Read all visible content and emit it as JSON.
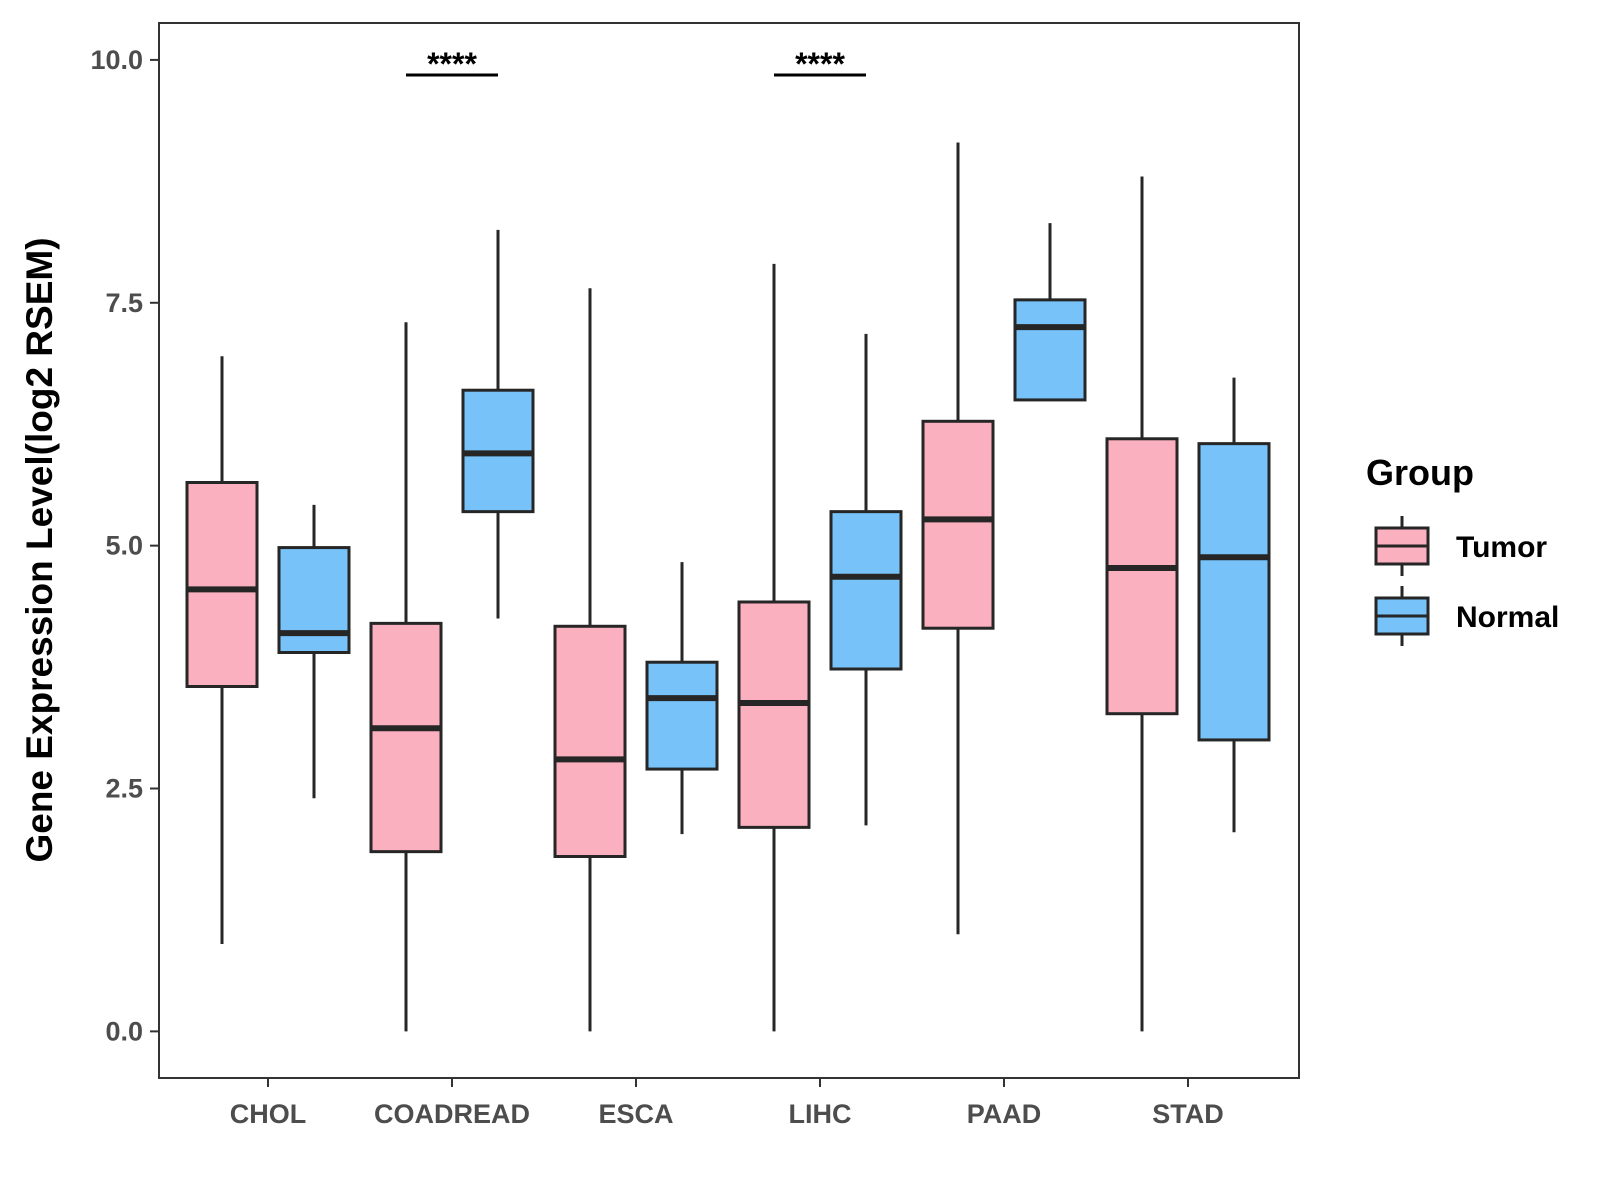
{
  "chart_data": {
    "type": "boxplot",
    "title": "",
    "xlabel": "",
    "ylabel": "Gene Expression Level(log2 RSEM)",
    "ylim": [
      -0.48,
      10.38
    ],
    "yticks": [
      0.0,
      2.5,
      5.0,
      7.5,
      10.0
    ],
    "ytick_labels": [
      "0.0",
      "2.5",
      "5.0",
      "7.5",
      "10.0"
    ],
    "categories": [
      "CHOL",
      "COADREAD",
      "ESCA",
      "LIHC",
      "PAAD",
      "STAD"
    ],
    "legend": {
      "title": "Group",
      "position": "right",
      "entries": [
        {
          "name": "Tumor",
          "color": "#FBB0C0"
        },
        {
          "name": "Normal",
          "color": "#77C2F8"
        }
      ]
    },
    "series": [
      {
        "name": "Tumor",
        "color": "#FBB0C0",
        "boxes": [
          {
            "whisker_low": 0.9,
            "q1": 3.55,
            "median": 4.55,
            "q3": 5.65,
            "whisker_high": 6.95
          },
          {
            "whisker_low": 0.0,
            "q1": 1.85,
            "median": 3.12,
            "q3": 4.2,
            "whisker_high": 7.3
          },
          {
            "whisker_low": 0.0,
            "q1": 1.8,
            "median": 2.8,
            "q3": 4.17,
            "whisker_high": 7.65
          },
          {
            "whisker_low": 0.0,
            "q1": 2.1,
            "median": 3.38,
            "q3": 4.42,
            "whisker_high": 7.9
          },
          {
            "whisker_low": 1.0,
            "q1": 4.15,
            "median": 5.27,
            "q3": 6.28,
            "whisker_high": 9.15
          },
          {
            "whisker_low": 0.0,
            "q1": 3.27,
            "median": 4.77,
            "q3": 6.1,
            "whisker_high": 8.8
          }
        ]
      },
      {
        "name": "Normal",
        "color": "#77C2F8",
        "boxes": [
          {
            "whisker_low": 2.4,
            "q1": 3.9,
            "median": 4.1,
            "q3": 4.98,
            "whisker_high": 5.42
          },
          {
            "whisker_low": 4.25,
            "q1": 5.35,
            "median": 5.95,
            "q3": 6.6,
            "whisker_high": 8.25
          },
          {
            "whisker_low": 2.03,
            "q1": 2.7,
            "median": 3.43,
            "q3": 3.8,
            "whisker_high": 4.83
          },
          {
            "whisker_low": 2.12,
            "q1": 3.73,
            "median": 4.68,
            "q3": 5.35,
            "whisker_high": 7.18
          },
          {
            "whisker_low": 6.5,
            "q1": 6.5,
            "median": 7.25,
            "q3": 7.53,
            "whisker_high": 8.32
          },
          {
            "whisker_low": 2.05,
            "q1": 3.0,
            "median": 4.88,
            "q3": 6.05,
            "whisker_high": 6.73
          }
        ]
      }
    ],
    "annotations": [
      {
        "category": "COADREAD",
        "label": "****"
      },
      {
        "category": "LIHC",
        "label": "****"
      }
    ]
  }
}
